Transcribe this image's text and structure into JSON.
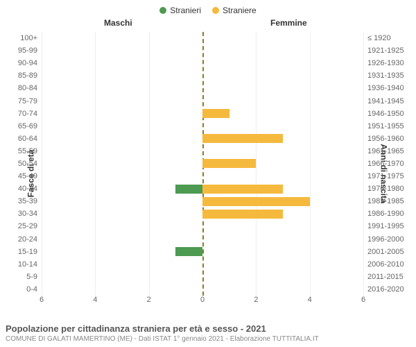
{
  "chart": {
    "type": "population-pyramid",
    "legend": [
      {
        "label": "Stranieri",
        "color": "#4d9a51"
      },
      {
        "label": "Straniere",
        "color": "#f5b93d"
      }
    ],
    "header_male": "Maschi",
    "header_female": "Femmine",
    "y_label_left": "Fasce di età",
    "y_label_right": "Anni di nascita",
    "xmax": 6,
    "x_ticks": [
      6,
      4,
      2,
      0,
      2,
      4,
      6
    ],
    "bar_color_male": "#4d9a51",
    "bar_color_female": "#f5b93d",
    "center_line_color": "#8a7a2a",
    "grid_color": "#eeeeee",
    "background_color": "#ffffff",
    "tick_fontsize": 11,
    "label_fontsize": 12,
    "rows": [
      {
        "age": "100+",
        "birth": "≤ 1920",
        "m": 0,
        "f": 0
      },
      {
        "age": "95-99",
        "birth": "1921-1925",
        "m": 0,
        "f": 0
      },
      {
        "age": "90-94",
        "birth": "1926-1930",
        "m": 0,
        "f": 0
      },
      {
        "age": "85-89",
        "birth": "1931-1935",
        "m": 0,
        "f": 0
      },
      {
        "age": "80-84",
        "birth": "1936-1940",
        "m": 0,
        "f": 0
      },
      {
        "age": "75-79",
        "birth": "1941-1945",
        "m": 0,
        "f": 0
      },
      {
        "age": "70-74",
        "birth": "1946-1950",
        "m": 0,
        "f": 1
      },
      {
        "age": "65-69",
        "birth": "1951-1955",
        "m": 0,
        "f": 0
      },
      {
        "age": "60-64",
        "birth": "1956-1960",
        "m": 0,
        "f": 3
      },
      {
        "age": "55-59",
        "birth": "1961-1965",
        "m": 0,
        "f": 0
      },
      {
        "age": "50-54",
        "birth": "1966-1970",
        "m": 0,
        "f": 2
      },
      {
        "age": "45-49",
        "birth": "1971-1975",
        "m": 0,
        "f": 0
      },
      {
        "age": "40-44",
        "birth": "1976-1980",
        "m": 1,
        "f": 3
      },
      {
        "age": "35-39",
        "birth": "1981-1985",
        "m": 0,
        "f": 4
      },
      {
        "age": "30-34",
        "birth": "1986-1990",
        "m": 0,
        "f": 3
      },
      {
        "age": "25-29",
        "birth": "1991-1995",
        "m": 0,
        "f": 0
      },
      {
        "age": "20-24",
        "birth": "1996-2000",
        "m": 0,
        "f": 0
      },
      {
        "age": "15-19",
        "birth": "2001-2005",
        "m": 1,
        "f": 0
      },
      {
        "age": "10-14",
        "birth": "2006-2010",
        "m": 0,
        "f": 0
      },
      {
        "age": "5-9",
        "birth": "2011-2015",
        "m": 0,
        "f": 0
      },
      {
        "age": "0-4",
        "birth": "2016-2020",
        "m": 0,
        "f": 0
      }
    ]
  },
  "footer": {
    "title": "Popolazione per cittadinanza straniera per età e sesso - 2021",
    "subtitle": "COMUNE DI GALATI MAMERTINO (ME) - Dati ISTAT 1° gennaio 2021 - Elaborazione TUTTITALIA.IT"
  }
}
